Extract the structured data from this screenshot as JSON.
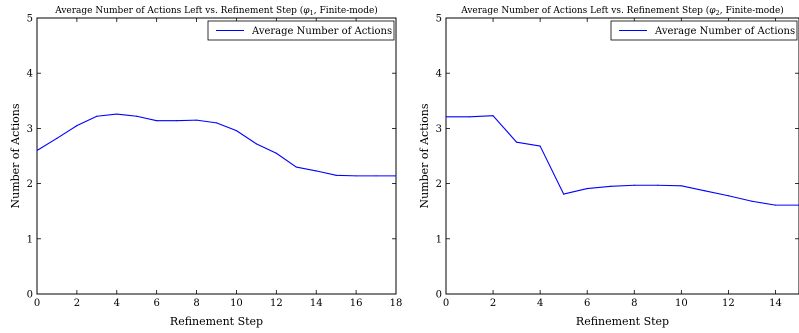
{
  "chart_data": [
    {
      "type": "line",
      "title": "Average Number of Actions Left vs. Refinement Step (",
      "title_symbol": "φ",
      "title_subscript": "1",
      "title_suffix": ", Finite-mode)",
      "xlabel": "Refinement Step",
      "ylabel": "Number of Actions",
      "xlim": [
        0,
        18
      ],
      "ylim": [
        0,
        5
      ],
      "xticks": [
        "0",
        "2",
        "4",
        "6",
        "8",
        "10",
        "12",
        "14",
        "16",
        "18"
      ],
      "yticks": [
        "0",
        "1",
        "2",
        "3",
        "4",
        "5"
      ],
      "grid": false,
      "legend_position": "top-right",
      "series": [
        {
          "name": "Average Number of Actions",
          "color": "#0000ff",
          "x": [
            0,
            1,
            2,
            3,
            4,
            5,
            6,
            7,
            8,
            9,
            10,
            11,
            12,
            13,
            14,
            15,
            16,
            17,
            18
          ],
          "y": [
            2.6,
            2.82,
            3.05,
            3.22,
            3.26,
            3.22,
            3.14,
            3.14,
            3.15,
            3.1,
            2.96,
            2.72,
            2.55,
            2.3,
            2.23,
            2.15,
            2.14,
            2.14,
            2.14
          ]
        }
      ]
    },
    {
      "type": "line",
      "title": "Average Number of Actions Left vs. Refinement Step (",
      "title_symbol": "φ",
      "title_subscript": "2",
      "title_suffix": ", Finite-mode)",
      "xlabel": "Refinement Step",
      "ylabel": "Number of Actions",
      "xlim": [
        0,
        15
      ],
      "ylim": [
        0,
        5
      ],
      "xticks": [
        "0",
        "2",
        "4",
        "6",
        "8",
        "10",
        "12",
        "14"
      ],
      "yticks": [
        "0",
        "1",
        "2",
        "3",
        "4",
        "5"
      ],
      "grid": false,
      "legend_position": "top-right",
      "series": [
        {
          "name": "Average Number of Actions",
          "color": "#0000ff",
          "x": [
            0,
            1,
            2,
            3,
            4,
            5,
            6,
            7,
            8,
            9,
            10,
            11,
            12,
            13,
            14,
            15
          ],
          "y": [
            3.21,
            3.21,
            3.23,
            2.75,
            2.68,
            1.81,
            1.91,
            1.95,
            1.97,
            1.97,
            1.96,
            1.87,
            1.78,
            1.68,
            1.61,
            1.61
          ]
        }
      ]
    }
  ]
}
